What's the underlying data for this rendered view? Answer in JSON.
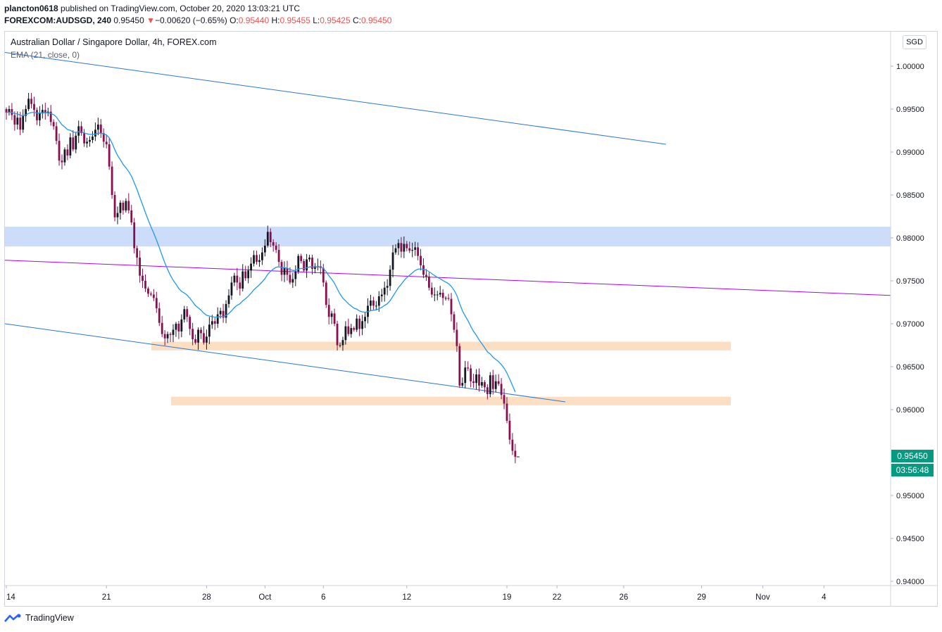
{
  "header": {
    "author": "plancton0618",
    "published_text": "published on TradingView.com, October 20, 2020 13:03:21 UTC",
    "symbol": "FOREXCOM:AUDSGD, 240",
    "last": "0.95450",
    "change_arrow": "▼",
    "change": "−0.00620 (−0.65%)",
    "o_label": "O:",
    "o": "0.95440",
    "h_label": "H:",
    "h": "0.95455",
    "l_label": "L:",
    "l": "0.95425",
    "c_label": "C:",
    "c": "0.95450"
  },
  "legend": {
    "title": "Australian Dollar / Singapore Dollar, 4h, FOREX.com",
    "indicator": "EMA (21, close, 0)"
  },
  "currency_badge": "SGD",
  "price_label": "0.95450",
  "countdown_label": "03:56:48",
  "footer": {
    "brand": "TradingView"
  },
  "colors": {
    "up": "#131722",
    "down": "#880e4f",
    "ema": "#2196f3",
    "channel": "#2976d9",
    "mid_line": "#aa00ff",
    "resistance_zone": "#bbd2f7",
    "support_zone": "#fbd9b7",
    "price_label_bg": "#089981"
  },
  "chart_data": {
    "type": "candlestick",
    "title": "Australian Dollar / Singapore Dollar, 4h, FOREX.com",
    "timeframe": "4h",
    "ylim": [
      0.9395,
      1.004
    ],
    "y_ticks": [
      "1.00000",
      "0.99500",
      "0.99000",
      "0.98500",
      "0.98000",
      "0.97500",
      "0.97000",
      "0.96500",
      "0.96000",
      "0.95000",
      "0.94500",
      "0.94000"
    ],
    "x_tick_labels": [
      {
        "label": "14",
        "bar": 0
      },
      {
        "label": "21",
        "bar": 36
      },
      {
        "label": "28",
        "bar": 72
      },
      {
        "label": "Oct",
        "bar": 93
      },
      {
        "label": "6",
        "bar": 114
      },
      {
        "label": "12",
        "bar": 144
      },
      {
        "label": "19",
        "bar": 180
      },
      {
        "label": "22",
        "bar": 198
      },
      {
        "label": "26",
        "bar": 222
      },
      {
        "label": "29",
        "bar": 250
      },
      {
        "label": "Nov",
        "bar": 272
      },
      {
        "label": "4",
        "bar": 294
      }
    ],
    "closes": [
      0.9946,
      0.995,
      0.9943,
      0.9932,
      0.994,
      0.9926,
      0.9942,
      0.995,
      0.9962,
      0.9956,
      0.9949,
      0.9937,
      0.9945,
      0.9949,
      0.9946,
      0.9947,
      0.9935,
      0.993,
      0.9913,
      0.989,
      0.9888,
      0.9903,
      0.9896,
      0.9917,
      0.9903,
      0.9919,
      0.993,
      0.9922,
      0.991,
      0.9912,
      0.9914,
      0.9918,
      0.9926,
      0.9932,
      0.9922,
      0.9912,
      0.9909,
      0.9883,
      0.985,
      0.9824,
      0.9829,
      0.9841,
      0.9832,
      0.9843,
      0.9832,
      0.9818,
      0.9788,
      0.9777,
      0.9756,
      0.975,
      0.9741,
      0.9735,
      0.9734,
      0.973,
      0.9718,
      0.9701,
      0.9688,
      0.9683,
      0.9688,
      0.9687,
      0.9693,
      0.97,
      0.9691,
      0.9705,
      0.9717,
      0.9708,
      0.9694,
      0.9682,
      0.9678,
      0.9693,
      0.9689,
      0.9678,
      0.9685,
      0.9699,
      0.9703,
      0.97,
      0.9711,
      0.9715,
      0.9707,
      0.9723,
      0.9733,
      0.9748,
      0.9756,
      0.9748,
      0.9741,
      0.9761,
      0.9753,
      0.9762,
      0.977,
      0.978,
      0.9772,
      0.9774,
      0.9783,
      0.9791,
      0.9807,
      0.9795,
      0.9791,
      0.9786,
      0.9772,
      0.9757,
      0.9765,
      0.9757,
      0.9748,
      0.9752,
      0.9761,
      0.9779,
      0.9773,
      0.9762,
      0.9775,
      0.9777,
      0.9764,
      0.9767,
      0.9767,
      0.9765,
      0.9748,
      0.9722,
      0.9708,
      0.9712,
      0.97,
      0.9675,
      0.9675,
      0.9681,
      0.9697,
      0.9688,
      0.9695,
      0.9693,
      0.9706,
      0.9694,
      0.9703,
      0.9708,
      0.9721,
      0.9727,
      0.9721,
      0.9721,
      0.9732,
      0.9734,
      0.9742,
      0.9744,
      0.9763,
      0.9783,
      0.9788,
      0.9794,
      0.9784,
      0.9793,
      0.9788,
      0.9785,
      0.9786,
      0.9789,
      0.9779,
      0.9768,
      0.9757,
      0.9755,
      0.9742,
      0.9734,
      0.9734,
      0.9734,
      0.9736,
      0.973,
      0.973,
      0.9729,
      0.9711,
      0.9693,
      0.9674,
      0.9628,
      0.9631,
      0.9649,
      0.9648,
      0.9633,
      0.9631,
      0.9641,
      0.9628,
      0.9632,
      0.9626,
      0.9618,
      0.964,
      0.9624,
      0.9633,
      0.963,
      0.9617,
      0.9607,
      0.9587,
      0.9565,
      0.9552,
      0.9545
    ]
  }
}
